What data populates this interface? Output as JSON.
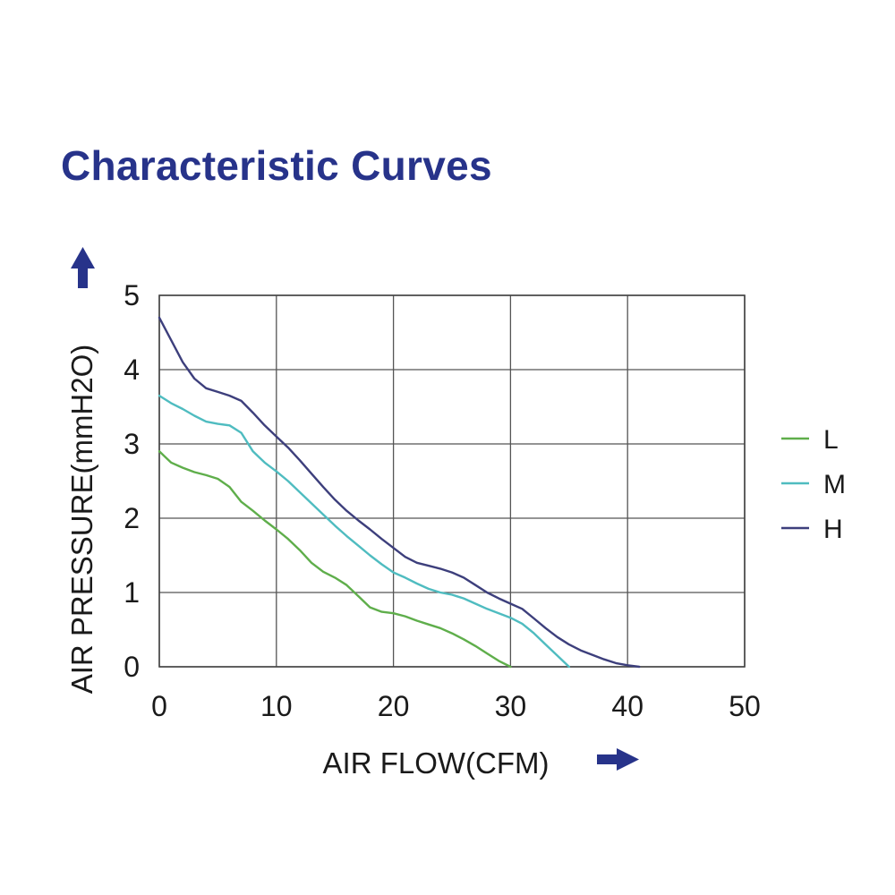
{
  "chart_data": {
    "type": "line",
    "title": "Characteristic Curves",
    "xlabel": "AIR FLOW(CFM)",
    "ylabel": "AIR PRESSURE(mmH2O)",
    "xlim": [
      0,
      50
    ],
    "ylim": [
      0,
      5
    ],
    "x_ticks": [
      "0",
      "10",
      "20",
      "30",
      "40",
      "50"
    ],
    "y_ticks": [
      "0",
      "1",
      "2",
      "3",
      "4",
      "5"
    ],
    "grid": true,
    "legend_position": "right",
    "series": [
      {
        "name": "L",
        "color": "#5fae4b",
        "points": [
          [
            0,
            2.9
          ],
          [
            1,
            2.75
          ],
          [
            2,
            2.68
          ],
          [
            3,
            2.62
          ],
          [
            4,
            2.58
          ],
          [
            5,
            2.53
          ],
          [
            6,
            2.42
          ],
          [
            7,
            2.22
          ],
          [
            8,
            2.1
          ],
          [
            9,
            1.97
          ],
          [
            10,
            1.85
          ],
          [
            11,
            1.72
          ],
          [
            12,
            1.57
          ],
          [
            13,
            1.4
          ],
          [
            14,
            1.28
          ],
          [
            15,
            1.2
          ],
          [
            16,
            1.1
          ],
          [
            17,
            0.95
          ],
          [
            18,
            0.8
          ],
          [
            19,
            0.74
          ],
          [
            20,
            0.72
          ],
          [
            21,
            0.68
          ],
          [
            22,
            0.62
          ],
          [
            23,
            0.57
          ],
          [
            24,
            0.52
          ],
          [
            25,
            0.45
          ],
          [
            26,
            0.37
          ],
          [
            27,
            0.28
          ],
          [
            28,
            0.18
          ],
          [
            29,
            0.08
          ],
          [
            30,
            0.0
          ]
        ]
      },
      {
        "name": "M",
        "color": "#4fbcc0",
        "points": [
          [
            0,
            3.65
          ],
          [
            1,
            3.55
          ],
          [
            2,
            3.47
          ],
          [
            3,
            3.38
          ],
          [
            4,
            3.3
          ],
          [
            5,
            3.27
          ],
          [
            6,
            3.25
          ],
          [
            7,
            3.15
          ],
          [
            8,
            2.9
          ],
          [
            9,
            2.75
          ],
          [
            10,
            2.63
          ],
          [
            11,
            2.5
          ],
          [
            12,
            2.35
          ],
          [
            13,
            2.2
          ],
          [
            14,
            2.05
          ],
          [
            15,
            1.9
          ],
          [
            16,
            1.76
          ],
          [
            17,
            1.63
          ],
          [
            18,
            1.5
          ],
          [
            19,
            1.38
          ],
          [
            20,
            1.27
          ],
          [
            21,
            1.2
          ],
          [
            22,
            1.12
          ],
          [
            23,
            1.05
          ],
          [
            24,
            1.0
          ],
          [
            25,
            0.97
          ],
          [
            26,
            0.92
          ],
          [
            27,
            0.85
          ],
          [
            28,
            0.78
          ],
          [
            29,
            0.72
          ],
          [
            30,
            0.66
          ],
          [
            31,
            0.58
          ],
          [
            32,
            0.45
          ],
          [
            33,
            0.3
          ],
          [
            34,
            0.15
          ],
          [
            35,
            0.0
          ]
        ]
      },
      {
        "name": "H",
        "color": "#3d3f7c",
        "points": [
          [
            0,
            4.7
          ],
          [
            1,
            4.4
          ],
          [
            2,
            4.1
          ],
          [
            3,
            3.88
          ],
          [
            4,
            3.75
          ],
          [
            5,
            3.7
          ],
          [
            6,
            3.65
          ],
          [
            7,
            3.58
          ],
          [
            8,
            3.42
          ],
          [
            9,
            3.25
          ],
          [
            10,
            3.1
          ],
          [
            11,
            2.95
          ],
          [
            12,
            2.78
          ],
          [
            13,
            2.6
          ],
          [
            14,
            2.42
          ],
          [
            15,
            2.25
          ],
          [
            16,
            2.1
          ],
          [
            17,
            1.97
          ],
          [
            18,
            1.85
          ],
          [
            19,
            1.72
          ],
          [
            20,
            1.6
          ],
          [
            21,
            1.48
          ],
          [
            22,
            1.4
          ],
          [
            23,
            1.36
          ],
          [
            24,
            1.32
          ],
          [
            25,
            1.27
          ],
          [
            26,
            1.2
          ],
          [
            27,
            1.1
          ],
          [
            28,
            1.0
          ],
          [
            29,
            0.92
          ],
          [
            30,
            0.85
          ],
          [
            31,
            0.78
          ],
          [
            32,
            0.65
          ],
          [
            33,
            0.52
          ],
          [
            34,
            0.4
          ],
          [
            35,
            0.3
          ],
          [
            36,
            0.22
          ],
          [
            37,
            0.16
          ],
          [
            38,
            0.1
          ],
          [
            39,
            0.05
          ],
          [
            40,
            0.02
          ],
          [
            41,
            0.0
          ]
        ]
      }
    ]
  }
}
